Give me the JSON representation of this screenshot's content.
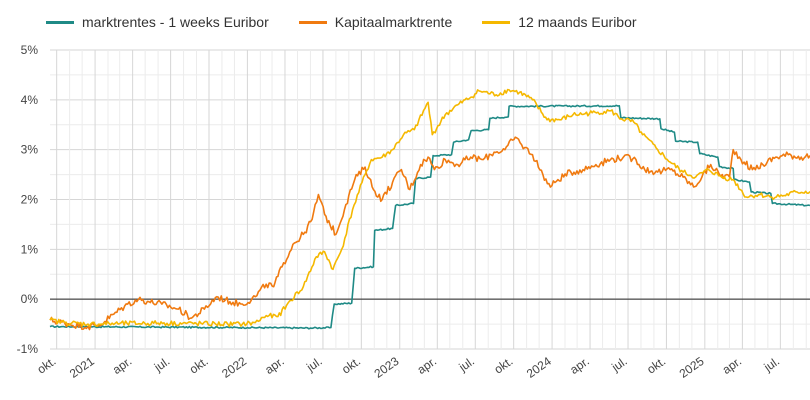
{
  "chart_data": {
    "type": "line",
    "title": "",
    "xlabel": "",
    "ylabel": "",
    "ylim": [
      -1,
      5
    ],
    "y_ticks": [
      "-1%",
      "0%",
      "1%",
      "2%",
      "3%",
      "4%",
      "5%"
    ],
    "y_tick_values": [
      -1,
      0,
      1,
      2,
      3,
      4,
      5
    ],
    "x_range": [
      "2020-09-15",
      "2025-09-10"
    ],
    "x_ticks": [
      {
        "date": "2020-10-01",
        "label": "okt."
      },
      {
        "date": "2021-01-01",
        "label": "2021"
      },
      {
        "date": "2021-04-01",
        "label": "apr."
      },
      {
        "date": "2021-07-01",
        "label": "jul."
      },
      {
        "date": "2021-10-01",
        "label": "okt."
      },
      {
        "date": "2022-01-01",
        "label": "2022"
      },
      {
        "date": "2022-04-01",
        "label": "apr."
      },
      {
        "date": "2022-07-01",
        "label": "jul."
      },
      {
        "date": "2022-10-01",
        "label": "okt."
      },
      {
        "date": "2023-01-01",
        "label": "2023"
      },
      {
        "date": "2023-04-01",
        "label": "apr."
      },
      {
        "date": "2023-07-01",
        "label": "jul."
      },
      {
        "date": "2023-10-01",
        "label": "okt."
      },
      {
        "date": "2024-01-01",
        "label": "2024"
      },
      {
        "date": "2024-04-01",
        "label": "apr."
      },
      {
        "date": "2024-07-01",
        "label": "jul."
      },
      {
        "date": "2024-10-01",
        "label": "okt."
      },
      {
        "date": "2025-01-01",
        "label": "2025"
      },
      {
        "date": "2025-04-01",
        "label": "apr."
      },
      {
        "date": "2025-07-01",
        "label": "jul."
      }
    ],
    "grid": true,
    "legend_placement": "top-left",
    "series": [
      {
        "name": "marktrentes - 1 weeks Euribor",
        "color": "#1f8a86",
        "points": [
          [
            "2020-09-15",
            -0.55
          ],
          [
            "2021-06-01",
            -0.56
          ],
          [
            "2022-01-01",
            -0.57
          ],
          [
            "2022-06-01",
            -0.58
          ],
          [
            "2022-07-20",
            -0.57
          ],
          [
            "2022-07-28",
            -0.1
          ],
          [
            "2022-09-08",
            -0.08
          ],
          [
            "2022-09-15",
            0.62
          ],
          [
            "2022-10-30",
            0.65
          ],
          [
            "2022-11-02",
            1.38
          ],
          [
            "2022-12-15",
            1.42
          ],
          [
            "2022-12-22",
            1.88
          ],
          [
            "2023-02-03",
            1.92
          ],
          [
            "2023-02-08",
            2.42
          ],
          [
            "2023-03-16",
            2.45
          ],
          [
            "2023-03-22",
            2.88
          ],
          [
            "2023-05-05",
            2.9
          ],
          [
            "2023-05-10",
            3.15
          ],
          [
            "2023-06-15",
            3.2
          ],
          [
            "2023-06-21",
            3.38
          ],
          [
            "2023-08-02",
            3.4
          ],
          [
            "2023-08-05",
            3.63
          ],
          [
            "2023-09-18",
            3.66
          ],
          [
            "2023-09-20",
            3.87
          ],
          [
            "2024-06-10",
            3.88
          ],
          [
            "2024-06-14",
            3.64
          ],
          [
            "2024-09-15",
            3.62
          ],
          [
            "2024-09-18",
            3.42
          ],
          [
            "2024-10-20",
            3.35
          ],
          [
            "2024-10-23",
            3.17
          ],
          [
            "2024-12-15",
            3.15
          ],
          [
            "2024-12-20",
            2.92
          ],
          [
            "2025-02-01",
            2.85
          ],
          [
            "2025-02-05",
            2.66
          ],
          [
            "2025-03-10",
            2.62
          ],
          [
            "2025-03-12",
            2.4
          ],
          [
            "2025-04-18",
            2.35
          ],
          [
            "2025-04-22",
            2.15
          ],
          [
            "2025-06-08",
            2.12
          ],
          [
            "2025-06-12",
            1.92
          ],
          [
            "2025-09-10",
            1.88
          ]
        ]
      },
      {
        "name": "Kapitaalmarktrente",
        "color": "#f07a10",
        "points": [
          [
            "2020-09-15",
            -0.42
          ],
          [
            "2020-11-01",
            -0.5
          ],
          [
            "2020-12-15",
            -0.55
          ],
          [
            "2021-01-10",
            -0.53
          ],
          [
            "2021-02-15",
            -0.3
          ],
          [
            "2021-03-20",
            -0.1
          ],
          [
            "2021-04-15",
            0.0
          ],
          [
            "2021-05-10",
            -0.05
          ],
          [
            "2021-06-10",
            -0.1
          ],
          [
            "2021-07-20",
            -0.2
          ],
          [
            "2021-08-20",
            -0.38
          ],
          [
            "2021-09-20",
            -0.2
          ],
          [
            "2021-10-20",
            0.05
          ],
          [
            "2021-11-20",
            -0.05
          ],
          [
            "2021-12-20",
            -0.1
          ],
          [
            "2022-01-20",
            0.05
          ],
          [
            "2022-02-15",
            0.3
          ],
          [
            "2022-03-05",
            0.25
          ],
          [
            "2022-03-25",
            0.65
          ],
          [
            "2022-04-20",
            1.1
          ],
          [
            "2022-05-15",
            1.3
          ],
          [
            "2022-06-05",
            1.6
          ],
          [
            "2022-06-20",
            2.1
          ],
          [
            "2022-07-05",
            1.7
          ],
          [
            "2022-08-01",
            1.3
          ],
          [
            "2022-08-25",
            1.9
          ],
          [
            "2022-09-15",
            2.4
          ],
          [
            "2022-10-10",
            2.65
          ],
          [
            "2022-10-30",
            2.2
          ],
          [
            "2022-11-20",
            2.0
          ],
          [
            "2022-12-15",
            2.35
          ],
          [
            "2023-01-05",
            2.6
          ],
          [
            "2023-01-25",
            2.2
          ],
          [
            "2023-02-20",
            2.7
          ],
          [
            "2023-03-10",
            2.85
          ],
          [
            "2023-03-25",
            2.6
          ],
          [
            "2023-04-20",
            2.8
          ],
          [
            "2023-05-20",
            2.7
          ],
          [
            "2023-06-20",
            2.85
          ],
          [
            "2023-07-20",
            2.8
          ],
          [
            "2023-08-15",
            2.95
          ],
          [
            "2023-09-10",
            3.0
          ],
          [
            "2023-10-05",
            3.25
          ],
          [
            "2023-10-20",
            3.1
          ],
          [
            "2023-11-15",
            2.9
          ],
          [
            "2023-12-10",
            2.5
          ],
          [
            "2023-12-28",
            2.25
          ],
          [
            "2024-01-15",
            2.4
          ],
          [
            "2024-02-15",
            2.55
          ],
          [
            "2024-03-15",
            2.6
          ],
          [
            "2024-04-15",
            2.7
          ],
          [
            "2024-05-20",
            2.8
          ],
          [
            "2024-06-20",
            2.85
          ],
          [
            "2024-07-20",
            2.8
          ],
          [
            "2024-08-10",
            2.6
          ],
          [
            "2024-09-10",
            2.55
          ],
          [
            "2024-10-10",
            2.6
          ],
          [
            "2024-11-10",
            2.45
          ],
          [
            "2024-12-05",
            2.25
          ],
          [
            "2024-12-25",
            2.45
          ],
          [
            "2025-01-15",
            2.7
          ],
          [
            "2025-02-05",
            2.5
          ],
          [
            "2025-03-01",
            2.45
          ],
          [
            "2025-03-10",
            3.0
          ],
          [
            "2025-04-05",
            2.75
          ],
          [
            "2025-04-25",
            2.6
          ],
          [
            "2025-05-20",
            2.7
          ],
          [
            "2025-06-20",
            2.85
          ],
          [
            "2025-07-20",
            2.9
          ],
          [
            "2025-08-20",
            2.85
          ],
          [
            "2025-09-10",
            2.88
          ]
        ]
      },
      {
        "name": "12 maands Euribor",
        "color": "#f5b800",
        "points": [
          [
            "2020-09-15",
            -0.42
          ],
          [
            "2020-10-20",
            -0.47
          ],
          [
            "2020-12-15",
            -0.5
          ],
          [
            "2021-03-01",
            -0.49
          ],
          [
            "2021-06-01",
            -0.48
          ],
          [
            "2021-09-01",
            -0.49
          ],
          [
            "2021-11-15",
            -0.5
          ],
          [
            "2021-12-20",
            -0.5
          ],
          [
            "2022-01-20",
            -0.47
          ],
          [
            "2022-02-15",
            -0.33
          ],
          [
            "2022-03-15",
            -0.35
          ],
          [
            "2022-04-15",
            -0.02
          ],
          [
            "2022-05-15",
            0.25
          ],
          [
            "2022-06-15",
            0.85
          ],
          [
            "2022-07-05",
            0.95
          ],
          [
            "2022-07-25",
            0.6
          ],
          [
            "2022-08-15",
            1.0
          ],
          [
            "2022-09-10",
            1.8
          ],
          [
            "2022-10-10",
            2.5
          ],
          [
            "2022-10-25",
            2.8
          ],
          [
            "2022-11-20",
            2.85
          ],
          [
            "2022-12-15",
            3.0
          ],
          [
            "2023-01-10",
            3.3
          ],
          [
            "2023-02-05",
            3.4
          ],
          [
            "2023-03-10",
            3.95
          ],
          [
            "2023-03-20",
            3.3
          ],
          [
            "2023-04-20",
            3.7
          ],
          [
            "2023-05-20",
            3.9
          ],
          [
            "2023-06-20",
            4.05
          ],
          [
            "2023-07-10",
            4.18
          ],
          [
            "2023-08-20",
            4.1
          ],
          [
            "2023-09-20",
            4.2
          ],
          [
            "2023-10-15",
            4.15
          ],
          [
            "2023-11-15",
            4.0
          ],
          [
            "2023-12-20",
            3.6
          ],
          [
            "2024-01-20",
            3.6
          ],
          [
            "2024-02-20",
            3.7
          ],
          [
            "2024-03-20",
            3.72
          ],
          [
            "2024-04-20",
            3.75
          ],
          [
            "2024-05-20",
            3.78
          ],
          [
            "2024-06-15",
            3.62
          ],
          [
            "2024-07-15",
            3.55
          ],
          [
            "2024-08-05",
            3.3
          ],
          [
            "2024-09-10",
            3.0
          ],
          [
            "2024-10-10",
            2.75
          ],
          [
            "2024-11-10",
            2.55
          ],
          [
            "2024-12-10",
            2.45
          ],
          [
            "2025-01-10",
            2.6
          ],
          [
            "2025-02-10",
            2.45
          ],
          [
            "2025-03-10",
            2.4
          ],
          [
            "2025-04-10",
            2.05
          ],
          [
            "2025-05-10",
            2.1
          ],
          [
            "2025-06-10",
            2.05
          ],
          [
            "2025-07-10",
            2.08
          ],
          [
            "2025-08-10",
            2.15
          ],
          [
            "2025-09-10",
            2.16
          ]
        ]
      }
    ]
  }
}
